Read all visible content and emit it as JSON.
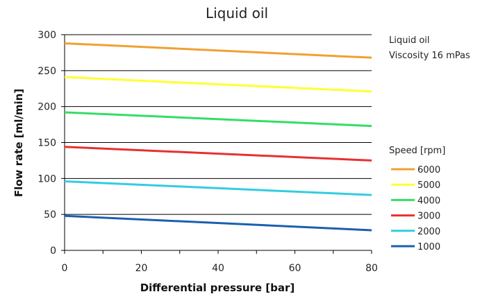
{
  "chart_data": {
    "type": "line",
    "title": "Liquid oil",
    "xlabel": "Differential pressure [bar]",
    "ylabel": "Flow rate [ml/min]",
    "xlim": [
      0,
      80
    ],
    "ylim": [
      0,
      300
    ],
    "x_ticks": [
      0,
      20,
      40,
      60,
      80
    ],
    "y_ticks": [
      0,
      50,
      100,
      150,
      200,
      250,
      300
    ],
    "grid": "horizontal",
    "annotations": [
      "Liquid oil",
      "Viscosity 16 mPas"
    ],
    "legend_title": "Speed [rpm]",
    "legend_position": "right",
    "x": [
      0,
      80
    ],
    "series": [
      {
        "name": "6000",
        "color": "#f0a030",
        "values": [
          288,
          268
        ]
      },
      {
        "name": "5000",
        "color": "#ffff33",
        "values": [
          241,
          221
        ]
      },
      {
        "name": "4000",
        "color": "#33dd66",
        "values": [
          192,
          173
        ]
      },
      {
        "name": "3000",
        "color": "#e83030",
        "values": [
          144,
          125
        ]
      },
      {
        "name": "2000",
        "color": "#33cce0",
        "values": [
          96,
          77
        ]
      },
      {
        "name": "1000",
        "color": "#1a5fb0",
        "values": [
          48,
          28
        ]
      }
    ]
  }
}
